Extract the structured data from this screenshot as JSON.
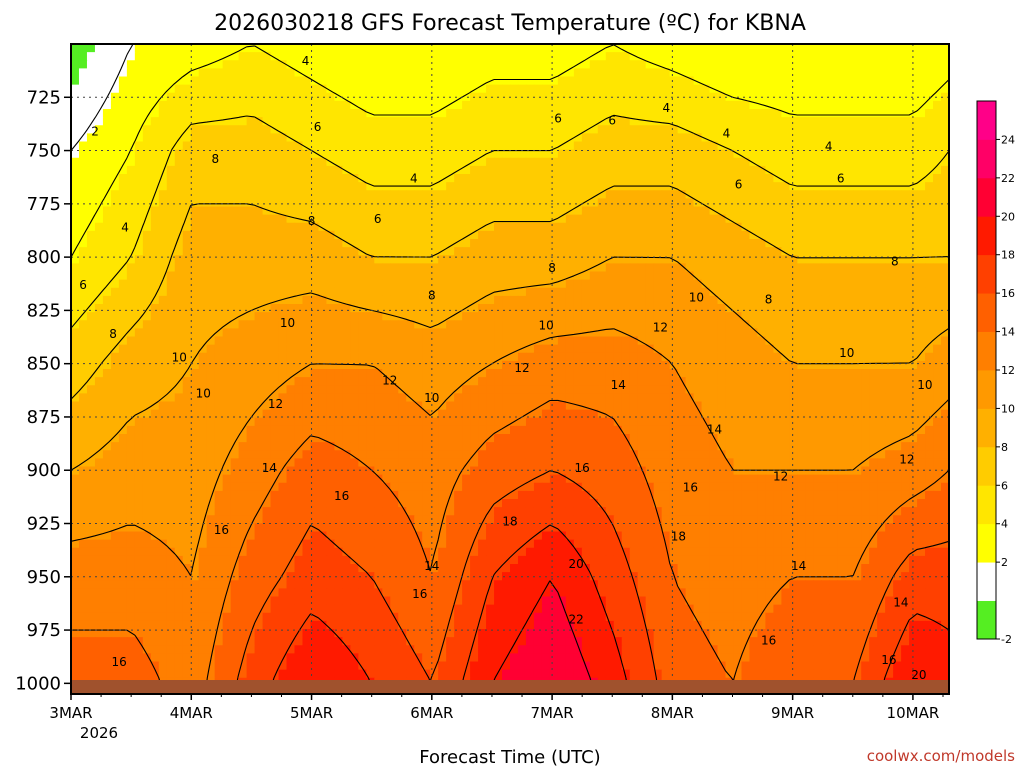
{
  "chart_data": {
    "type": "heatmap",
    "title": "2026030218 GFS Forecast Temperature (ºC) for KBNA",
    "xlabel": "Forecast Time (UTC)",
    "ylabel": "",
    "credit": "coolwx.com/models",
    "x_ticks": [
      "3MAR",
      "4MAR",
      "5MAR",
      "6MAR",
      "7MAR",
      "8MAR",
      "9MAR",
      "10MAR"
    ],
    "x_year": "2026",
    "y_ticks": [
      "725",
      "750",
      "775",
      "800",
      "825",
      "850",
      "875",
      "900",
      "925",
      "950",
      "975",
      "1000"
    ],
    "ylim": [
      700,
      1005
    ],
    "xlim": [
      0,
      7.3
    ],
    "colorbar": {
      "levels": [
        -2,
        0,
        2,
        4,
        6,
        8,
        10,
        12,
        14,
        16,
        18,
        20,
        22,
        24,
        26
      ],
      "labels": [
        "-2",
        "2",
        "4",
        "6",
        "8",
        "10",
        "12",
        "14",
        "16",
        "18",
        "20",
        "22",
        "24"
      ],
      "colors": [
        "#55ee22",
        "#ffffff",
        "#ffff00",
        "#ffe600",
        "#ffcc00",
        "#ffb000",
        "#ff9900",
        "#ff7f00",
        "#ff6000",
        "#ff4000",
        "#ff1a00",
        "#ff0033",
        "#ff0066",
        "#ff0088"
      ]
    },
    "series": [
      {
        "name": "x_days",
        "values": [
          0,
          0.5,
          1,
          1.5,
          2,
          2.5,
          3,
          3.5,
          4,
          4.5,
          5,
          5.5,
          6,
          6.5,
          7,
          7.3
        ]
      },
      {
        "name": "T_1000hPa",
        "values": [
          15,
          15,
          13,
          17,
          20,
          18,
          16,
          20,
          22,
          19,
          15,
          14,
          16,
          16,
          20,
          19
        ]
      },
      {
        "name": "T_950hPa",
        "values": [
          13,
          13,
          12,
          15,
          17,
          16,
          14,
          18,
          20,
          17,
          14,
          13,
          14,
          14,
          17,
          17
        ]
      },
      {
        "name": "T_900hPa",
        "values": [
          10,
          11,
          11,
          13,
          15,
          14,
          13,
          15,
          16,
          15,
          13,
          12,
          12,
          12,
          13,
          14
        ]
      },
      {
        "name": "T_850hPa",
        "values": [
          7,
          9,
          10,
          11,
          12,
          12,
          11,
          12,
          13,
          13,
          12,
          11,
          10,
          10,
          10,
          11
        ]
      },
      {
        "name": "T_800hPa",
        "values": [
          4,
          6,
          9,
          9,
          9,
          8,
          8,
          9,
          9,
          10,
          10,
          9,
          8,
          8,
          8,
          8
        ]
      },
      {
        "name": "T_750hPa",
        "values": [
          2,
          4,
          7,
          7,
          6,
          5,
          5,
          6,
          6,
          7,
          7,
          6,
          5,
          5,
          5,
          6
        ]
      },
      {
        "name": "T_700hPa",
        "values": [
          -1,
          2,
          3,
          4,
          3,
          2,
          2,
          3,
          3,
          4,
          3,
          2,
          2,
          2,
          2,
          3
        ]
      }
    ],
    "contour_labels": [
      {
        "text": "2",
        "x": 0.2,
        "y": 741
      },
      {
        "text": "4",
        "x": 1.95,
        "y": 708
      },
      {
        "text": "4",
        "x": 0.45,
        "y": 786
      },
      {
        "text": "4",
        "x": 2.85,
        "y": 763
      },
      {
        "text": "4",
        "x": 4.95,
        "y": 730
      },
      {
        "text": "4",
        "x": 5.45,
        "y": 742
      },
      {
        "text": "4",
        "x": 6.3,
        "y": 748
      },
      {
        "text": "6",
        "x": 2.05,
        "y": 739
      },
      {
        "text": "6",
        "x": 2.55,
        "y": 782
      },
      {
        "text": "6",
        "x": 4.05,
        "y": 735
      },
      {
        "text": "6",
        "x": 4.5,
        "y": 736
      },
      {
        "text": "6",
        "x": 5.55,
        "y": 766
      },
      {
        "text": "6",
        "x": 6.4,
        "y": 763
      },
      {
        "text": "6",
        "x": 0.1,
        "y": 813
      },
      {
        "text": "8",
        "x": 0.35,
        "y": 836
      },
      {
        "text": "8",
        "x": 1.2,
        "y": 754
      },
      {
        "text": "8",
        "x": 2.0,
        "y": 783
      },
      {
        "text": "8",
        "x": 3.0,
        "y": 818
      },
      {
        "text": "8",
        "x": 4.0,
        "y": 805
      },
      {
        "text": "8",
        "x": 5.8,
        "y": 820
      },
      {
        "text": "8",
        "x": 6.85,
        "y": 802
      },
      {
        "text": "10",
        "x": 0.9,
        "y": 847
      },
      {
        "text": "10",
        "x": 1.1,
        "y": 864
      },
      {
        "text": "10",
        "x": 1.8,
        "y": 831
      },
      {
        "text": "10",
        "x": 3.0,
        "y": 866
      },
      {
        "text": "10",
        "x": 3.95,
        "y": 832
      },
      {
        "text": "10",
        "x": 5.2,
        "y": 819
      },
      {
        "text": "10",
        "x": 6.45,
        "y": 845
      },
      {
        "text": "10",
        "x": 7.1,
        "y": 860
      },
      {
        "text": "12",
        "x": 1.7,
        "y": 869
      },
      {
        "text": "12",
        "x": 2.65,
        "y": 858
      },
      {
        "text": "12",
        "x": 3.75,
        "y": 852
      },
      {
        "text": "12",
        "x": 4.9,
        "y": 833
      },
      {
        "text": "12",
        "x": 5.9,
        "y": 903
      },
      {
        "text": "12",
        "x": 6.95,
        "y": 895
      },
      {
        "text": "14",
        "x": 1.65,
        "y": 899
      },
      {
        "text": "14",
        "x": 3.0,
        "y": 945
      },
      {
        "text": "14",
        "x": 4.55,
        "y": 860
      },
      {
        "text": "14",
        "x": 5.35,
        "y": 881
      },
      {
        "text": "14",
        "x": 6.05,
        "y": 945
      },
      {
        "text": "14",
        "x": 6.9,
        "y": 962
      },
      {
        "text": "16",
        "x": 0.4,
        "y": 990
      },
      {
        "text": "16",
        "x": 1.25,
        "y": 928
      },
      {
        "text": "16",
        "x": 2.25,
        "y": 912
      },
      {
        "text": "16",
        "x": 2.9,
        "y": 958
      },
      {
        "text": "16",
        "x": 4.25,
        "y": 899
      },
      {
        "text": "16",
        "x": 5.15,
        "y": 908
      },
      {
        "text": "16",
        "x": 5.8,
        "y": 980
      },
      {
        "text": "16",
        "x": 6.8,
        "y": 989
      },
      {
        "text": "18",
        "x": 3.65,
        "y": 924
      },
      {
        "text": "18",
        "x": 5.05,
        "y": 931
      },
      {
        "text": "20",
        "x": 4.2,
        "y": 944
      },
      {
        "text": "20",
        "x": 7.05,
        "y": 996
      },
      {
        "text": "22",
        "x": 4.2,
        "y": 970
      }
    ]
  }
}
